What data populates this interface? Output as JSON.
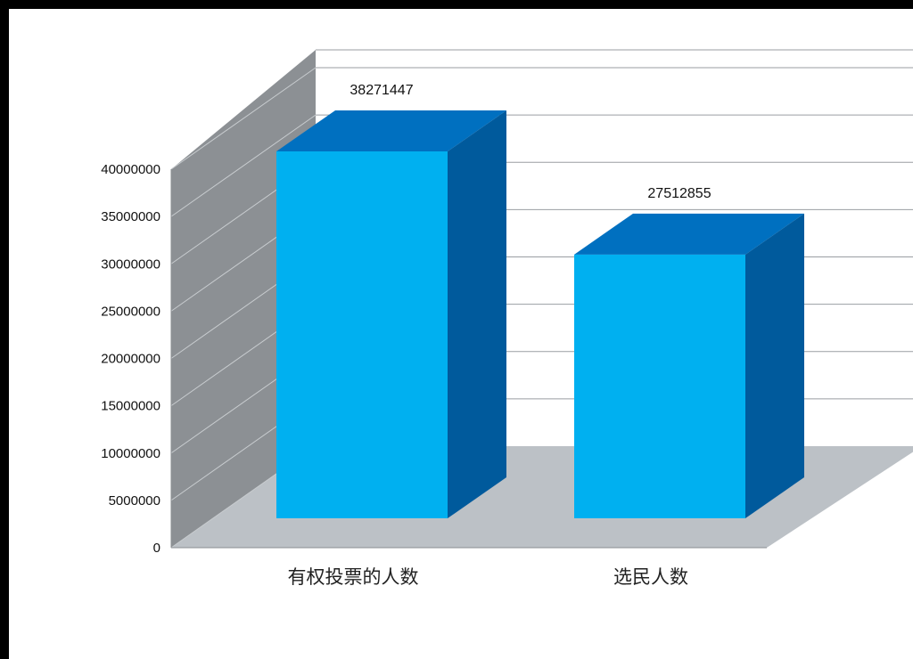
{
  "chart_data": {
    "type": "bar",
    "categories": [
      "有权投票的人数",
      "选民人数"
    ],
    "values": [
      38271447,
      27512855
    ],
    "value_labels": [
      "38271447",
      "27512855"
    ],
    "ylim": [
      0,
      40000000
    ],
    "y_ticks": [
      "0",
      "5000000",
      "10000000",
      "15000000",
      "20000000",
      "25000000",
      "30000000",
      "35000000",
      "40000000"
    ],
    "grid": true,
    "style": "3d-column",
    "colors": {
      "bar_front": "#00B0F0",
      "bar_top": "#0070C0",
      "bar_side": "#005A9C",
      "back_wall": "#FFFFFF",
      "side_wall": "#8C9094",
      "floor": "#BCC1C6"
    }
  }
}
